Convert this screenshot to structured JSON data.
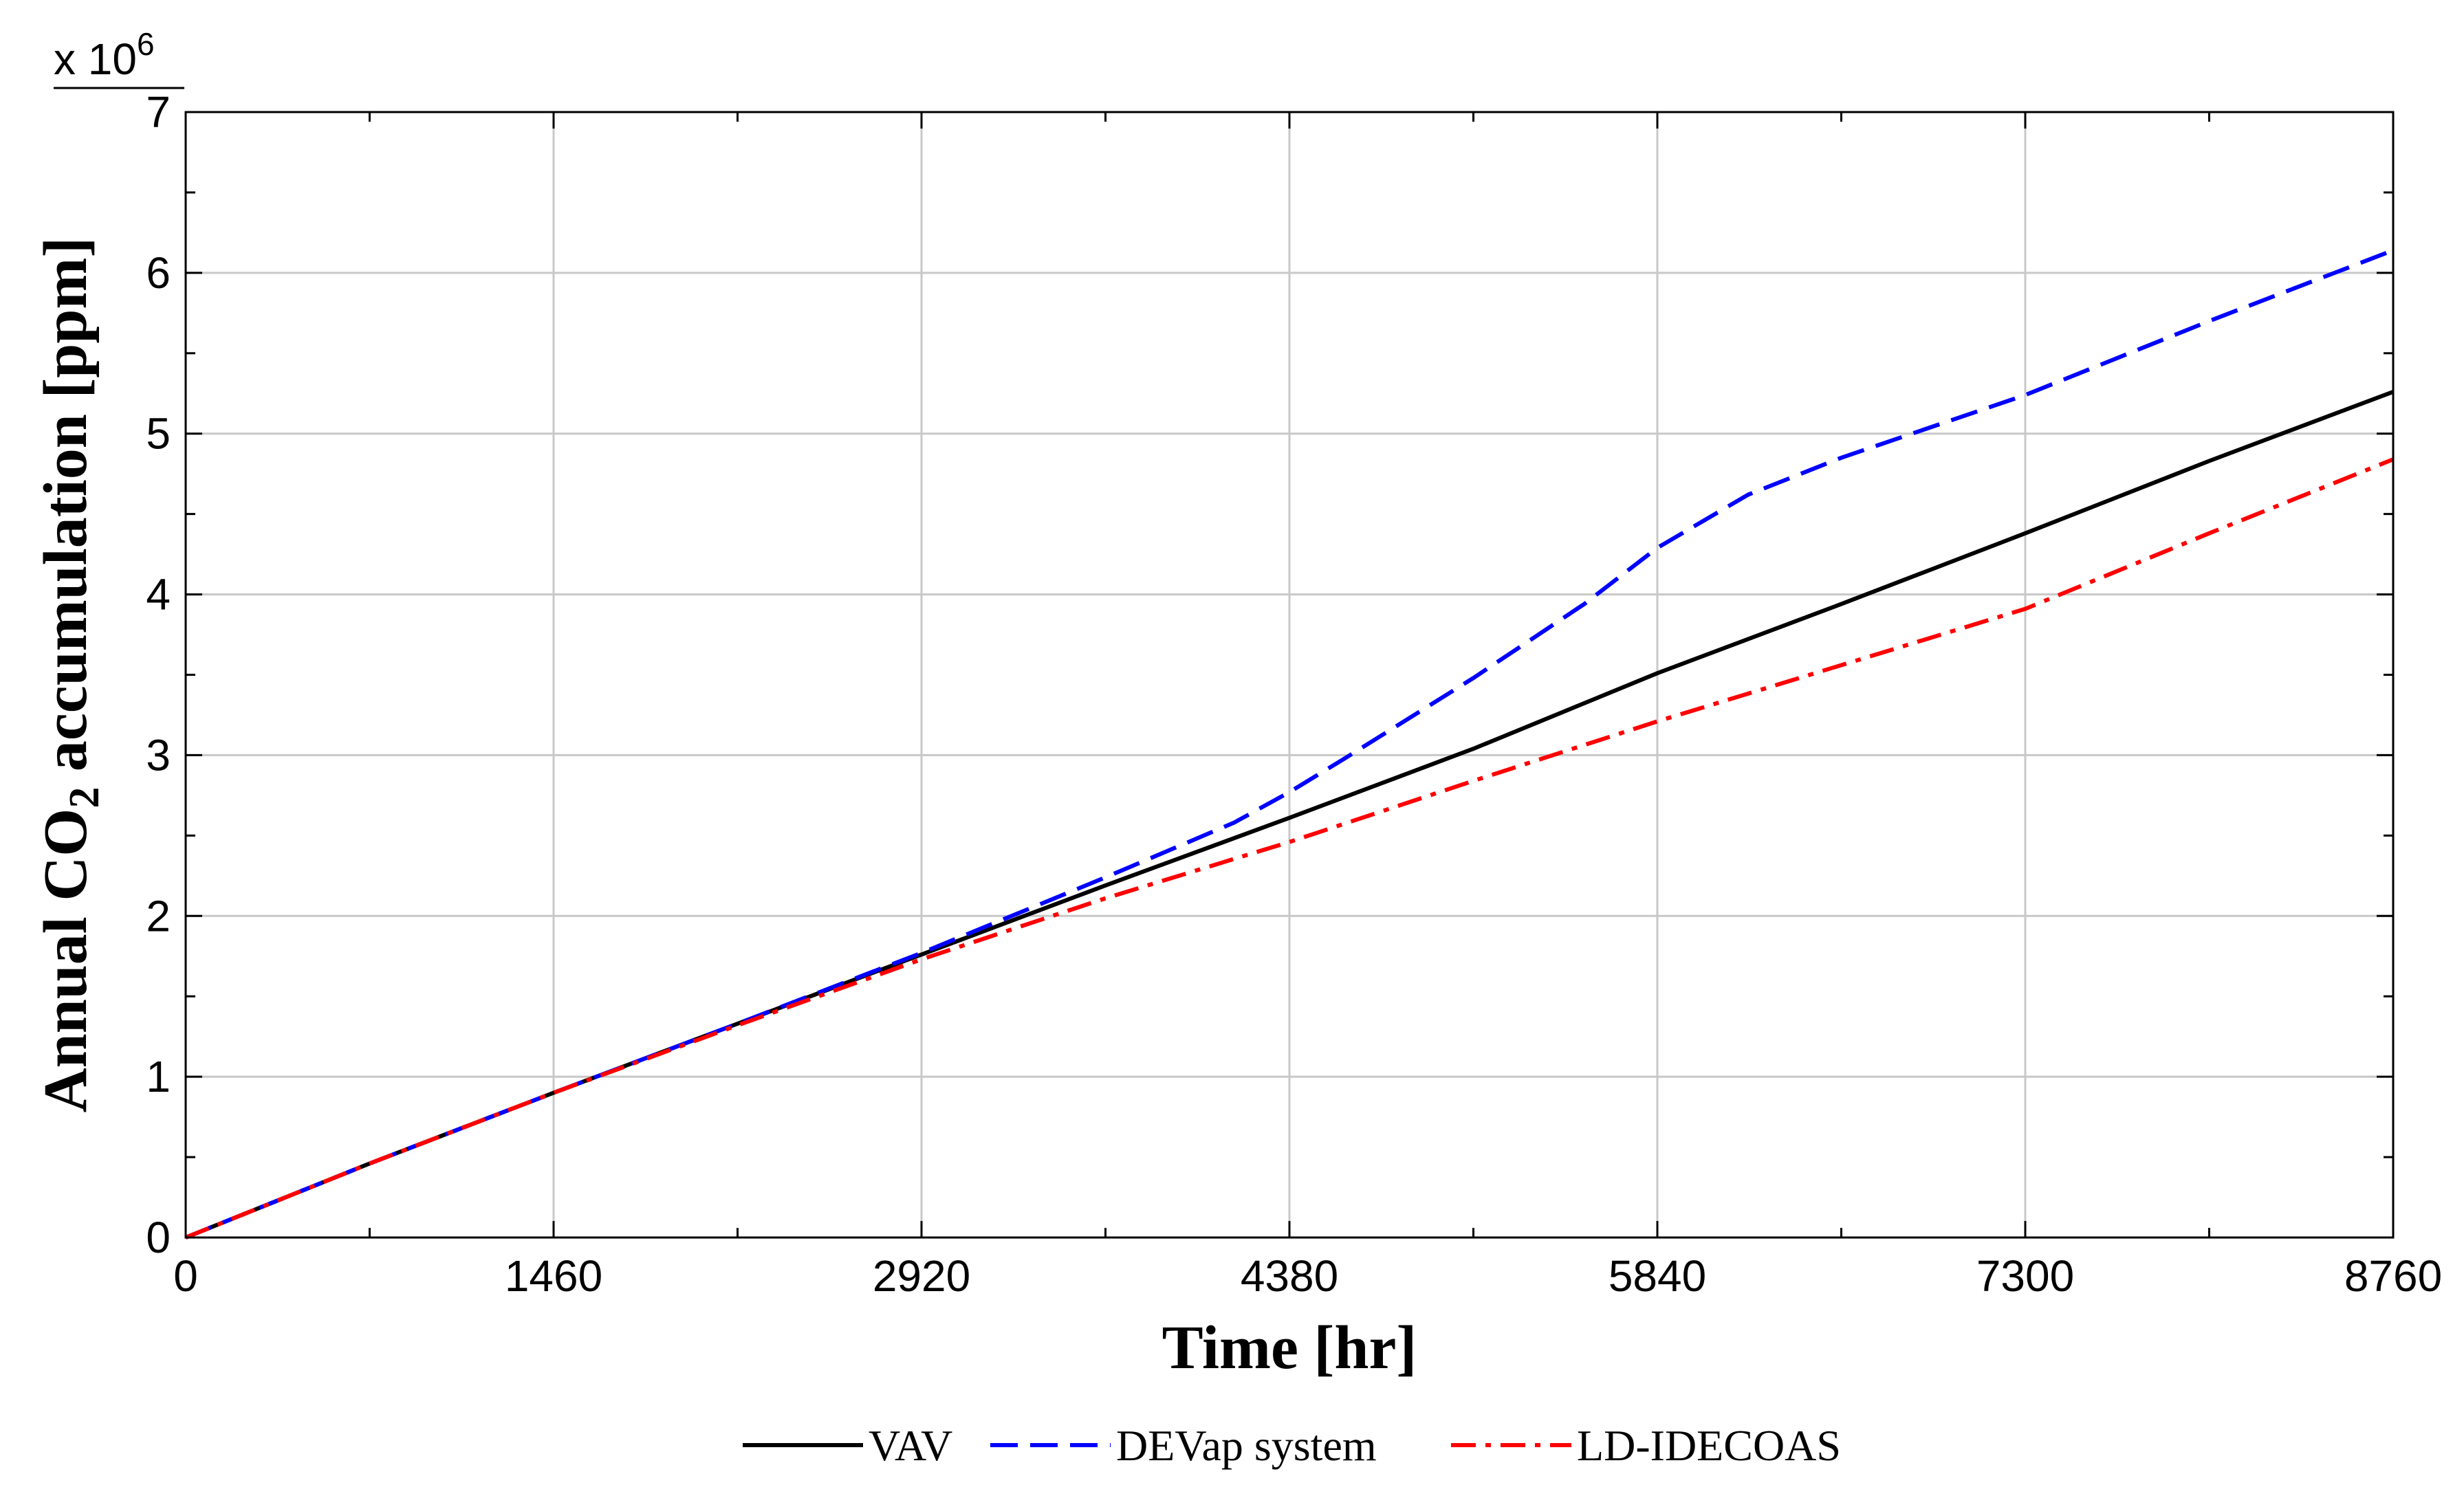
{
  "chart_data": {
    "type": "line",
    "xlabel": "Time [hr]",
    "ylabel_parts": {
      "prefix": "Annual CO",
      "subscript": "2",
      "suffix": " accumulation [ppm]"
    },
    "y_multiplier": {
      "base": "x 10",
      "exponent": "6"
    },
    "xlim": [
      0,
      8760
    ],
    "ylim": [
      0,
      7000000
    ],
    "x_ticks": [
      0,
      1460,
      2920,
      4380,
      5840,
      7300,
      8760
    ],
    "x_tick_labels": [
      "0",
      "1460",
      "2920",
      "4380",
      "5840",
      "7300",
      "8760"
    ],
    "y_ticks": [
      0,
      1000000,
      2000000,
      3000000,
      4000000,
      5000000,
      6000000,
      7000000
    ],
    "y_tick_labels": [
      "0",
      "1",
      "2",
      "3",
      "4",
      "5",
      "6",
      "7"
    ],
    "grid": true,
    "legend_position": "bottom",
    "series": [
      {
        "name": "VAV",
        "color": "#000000",
        "line_style": "solid",
        "x": [
          0,
          730,
          1460,
          2190,
          2920,
          3650,
          4380,
          5110,
          5840,
          6570,
          7300,
          8030,
          8760
        ],
        "values": [
          0,
          460000,
          900000,
          1330000,
          1760000,
          2190000,
          2610000,
          3040000,
          3510000,
          3940000,
          4380000,
          4830000,
          5260000
        ]
      },
      {
        "name": "DEVap system",
        "color": "#0000ff",
        "line_style": "dashed",
        "x": [
          0,
          730,
          1460,
          2190,
          2920,
          3650,
          4160,
          4380,
          4600,
          5110,
          5550,
          5840,
          6200,
          6570,
          7300,
          8030,
          8760
        ],
        "values": [
          0,
          460000,
          900000,
          1330000,
          1770000,
          2240000,
          2580000,
          2770000,
          2980000,
          3480000,
          3940000,
          4290000,
          4620000,
          4850000,
          5240000,
          5700000,
          6140000
        ]
      },
      {
        "name": "LD-IDECOAS",
        "color": "#ff0000",
        "line_style": "dashdot",
        "x": [
          0,
          730,
          1460,
          2190,
          2920,
          3650,
          4380,
          5110,
          5840,
          6570,
          7300,
          8030,
          8760
        ],
        "values": [
          0,
          460000,
          900000,
          1320000,
          1730000,
          2110000,
          2460000,
          2840000,
          3210000,
          3560000,
          3910000,
          4380000,
          4840000
        ]
      }
    ]
  }
}
